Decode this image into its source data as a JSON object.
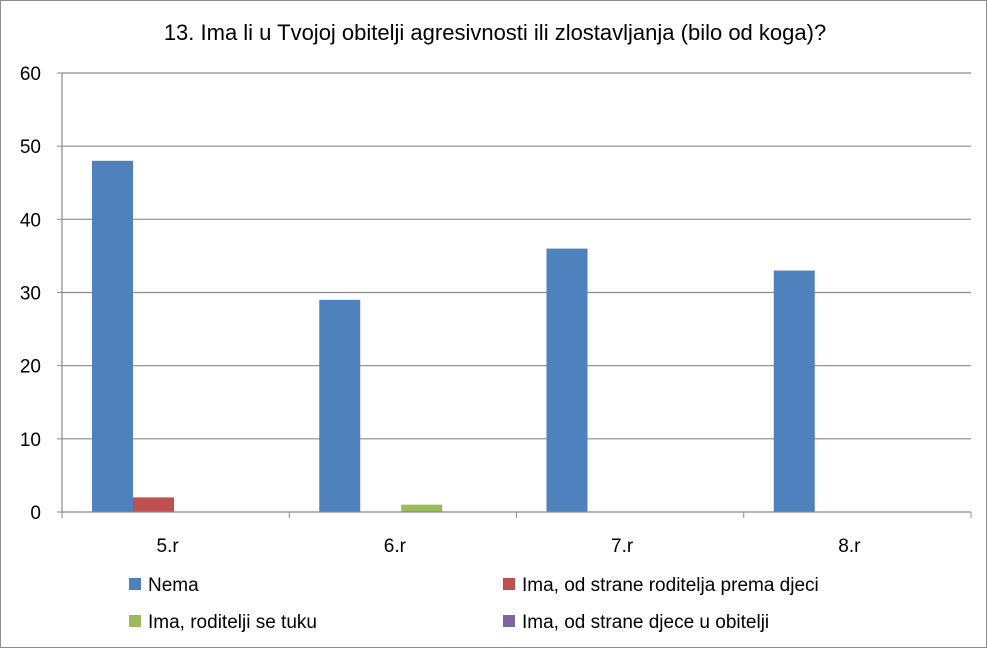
{
  "chart_data": {
    "type": "bar",
    "title": "13. Ima li u Tvojoj obitelji agresivnosti ili zlostavljanja (bilo od koga)?",
    "categories": [
      "5.r",
      "6.r",
      "7.r",
      "8.r"
    ],
    "series": [
      {
        "name": "Nema",
        "color": "#4f81bd",
        "values": [
          48,
          29,
          36,
          33
        ]
      },
      {
        "name": "Ima, od strane roditelja prema djeci",
        "color": "#c0504d",
        "values": [
          2,
          0,
          0,
          0
        ]
      },
      {
        "name": "Ima, roditelji se tuku",
        "color": "#9bbb59",
        "values": [
          0,
          1,
          0,
          0
        ]
      },
      {
        "name": "Ima, od strane djece u obitelji",
        "color": "#8064a2",
        "values": [
          0,
          0,
          0,
          0
        ]
      }
    ],
    "ylim": [
      0,
      60
    ],
    "yticks": [
      0,
      10,
      20,
      30,
      40,
      50,
      60
    ],
    "grid": true,
    "legend": "bottom",
    "xlabel": "",
    "ylabel": ""
  }
}
